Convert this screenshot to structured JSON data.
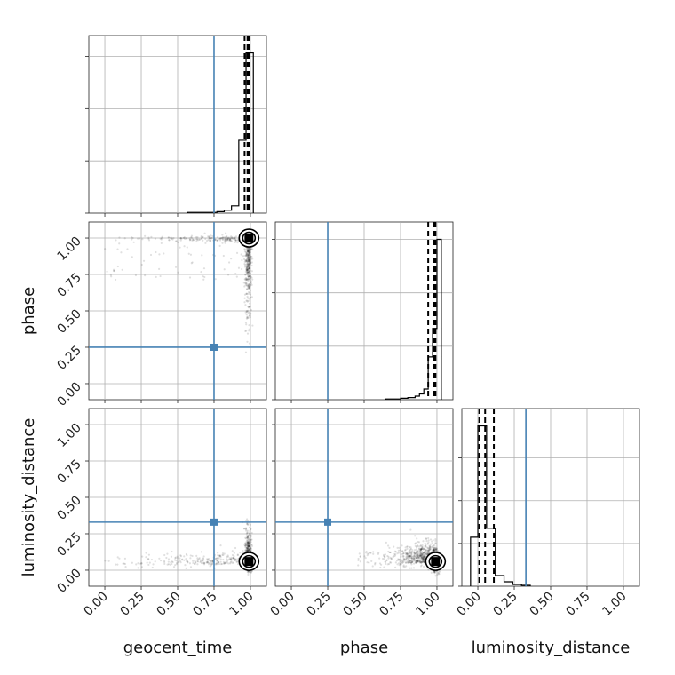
{
  "chart_data": {
    "type": "corner",
    "parameters": [
      {
        "key": "geocent_time",
        "label": "geocent_time"
      },
      {
        "key": "phase",
        "label": "phase"
      },
      {
        "key": "luminosity_distance",
        "label": "luminosity_distance"
      }
    ],
    "tick_labels": [
      "0.00",
      "0.25",
      "0.50",
      "0.75",
      "1.00"
    ],
    "truths": {
      "geocent_time": 0.75,
      "phase": 0.25,
      "luminosity_distance": 0.33
    },
    "truth_color": "#4682b4",
    "quantiles": {
      "geocent_time": [
        0.96,
        0.98,
        0.99
      ],
      "phase": [
        0.94,
        0.98,
        0.99
      ],
      "luminosity_distance": [
        0.01,
        0.05,
        0.11
      ]
    },
    "histograms": {
      "geocent_time": {
        "edges": [
          0.57,
          0.62,
          0.67,
          0.72,
          0.77,
          0.82,
          0.87,
          0.92,
          0.97,
          1.02
        ],
        "counts": [
          0.01,
          0.01,
          0.01,
          0.01,
          0.02,
          0.04,
          0.1,
          1.0,
          2.2
        ]
      },
      "phase": {
        "edges": [
          0.65,
          0.7,
          0.75,
          0.8,
          0.85,
          0.88,
          0.91,
          0.94,
          0.97,
          1.0,
          1.03
        ],
        "counts": [
          0.01,
          0.01,
          0.02,
          0.03,
          0.05,
          0.08,
          0.15,
          0.6,
          1.0,
          2.25
        ]
      },
      "luminosity_distance": {
        "edges": [
          -0.05,
          0.0,
          0.06,
          0.12,
          0.18,
          0.24,
          0.3,
          0.36
        ],
        "counts": [
          0.55,
          1.8,
          0.65,
          0.12,
          0.05,
          0.02,
          0.01
        ]
      }
    },
    "scatter_modes": {
      "geocent_time_vs_phase": {
        "x": 0.99,
        "y": 1.0
      },
      "geocent_time_vs_luminosity_distance": {
        "x": 0.99,
        "y": 0.06
      },
      "phase_vs_luminosity_distance": {
        "x": 0.99,
        "y": 0.06
      }
    },
    "grid": true
  }
}
